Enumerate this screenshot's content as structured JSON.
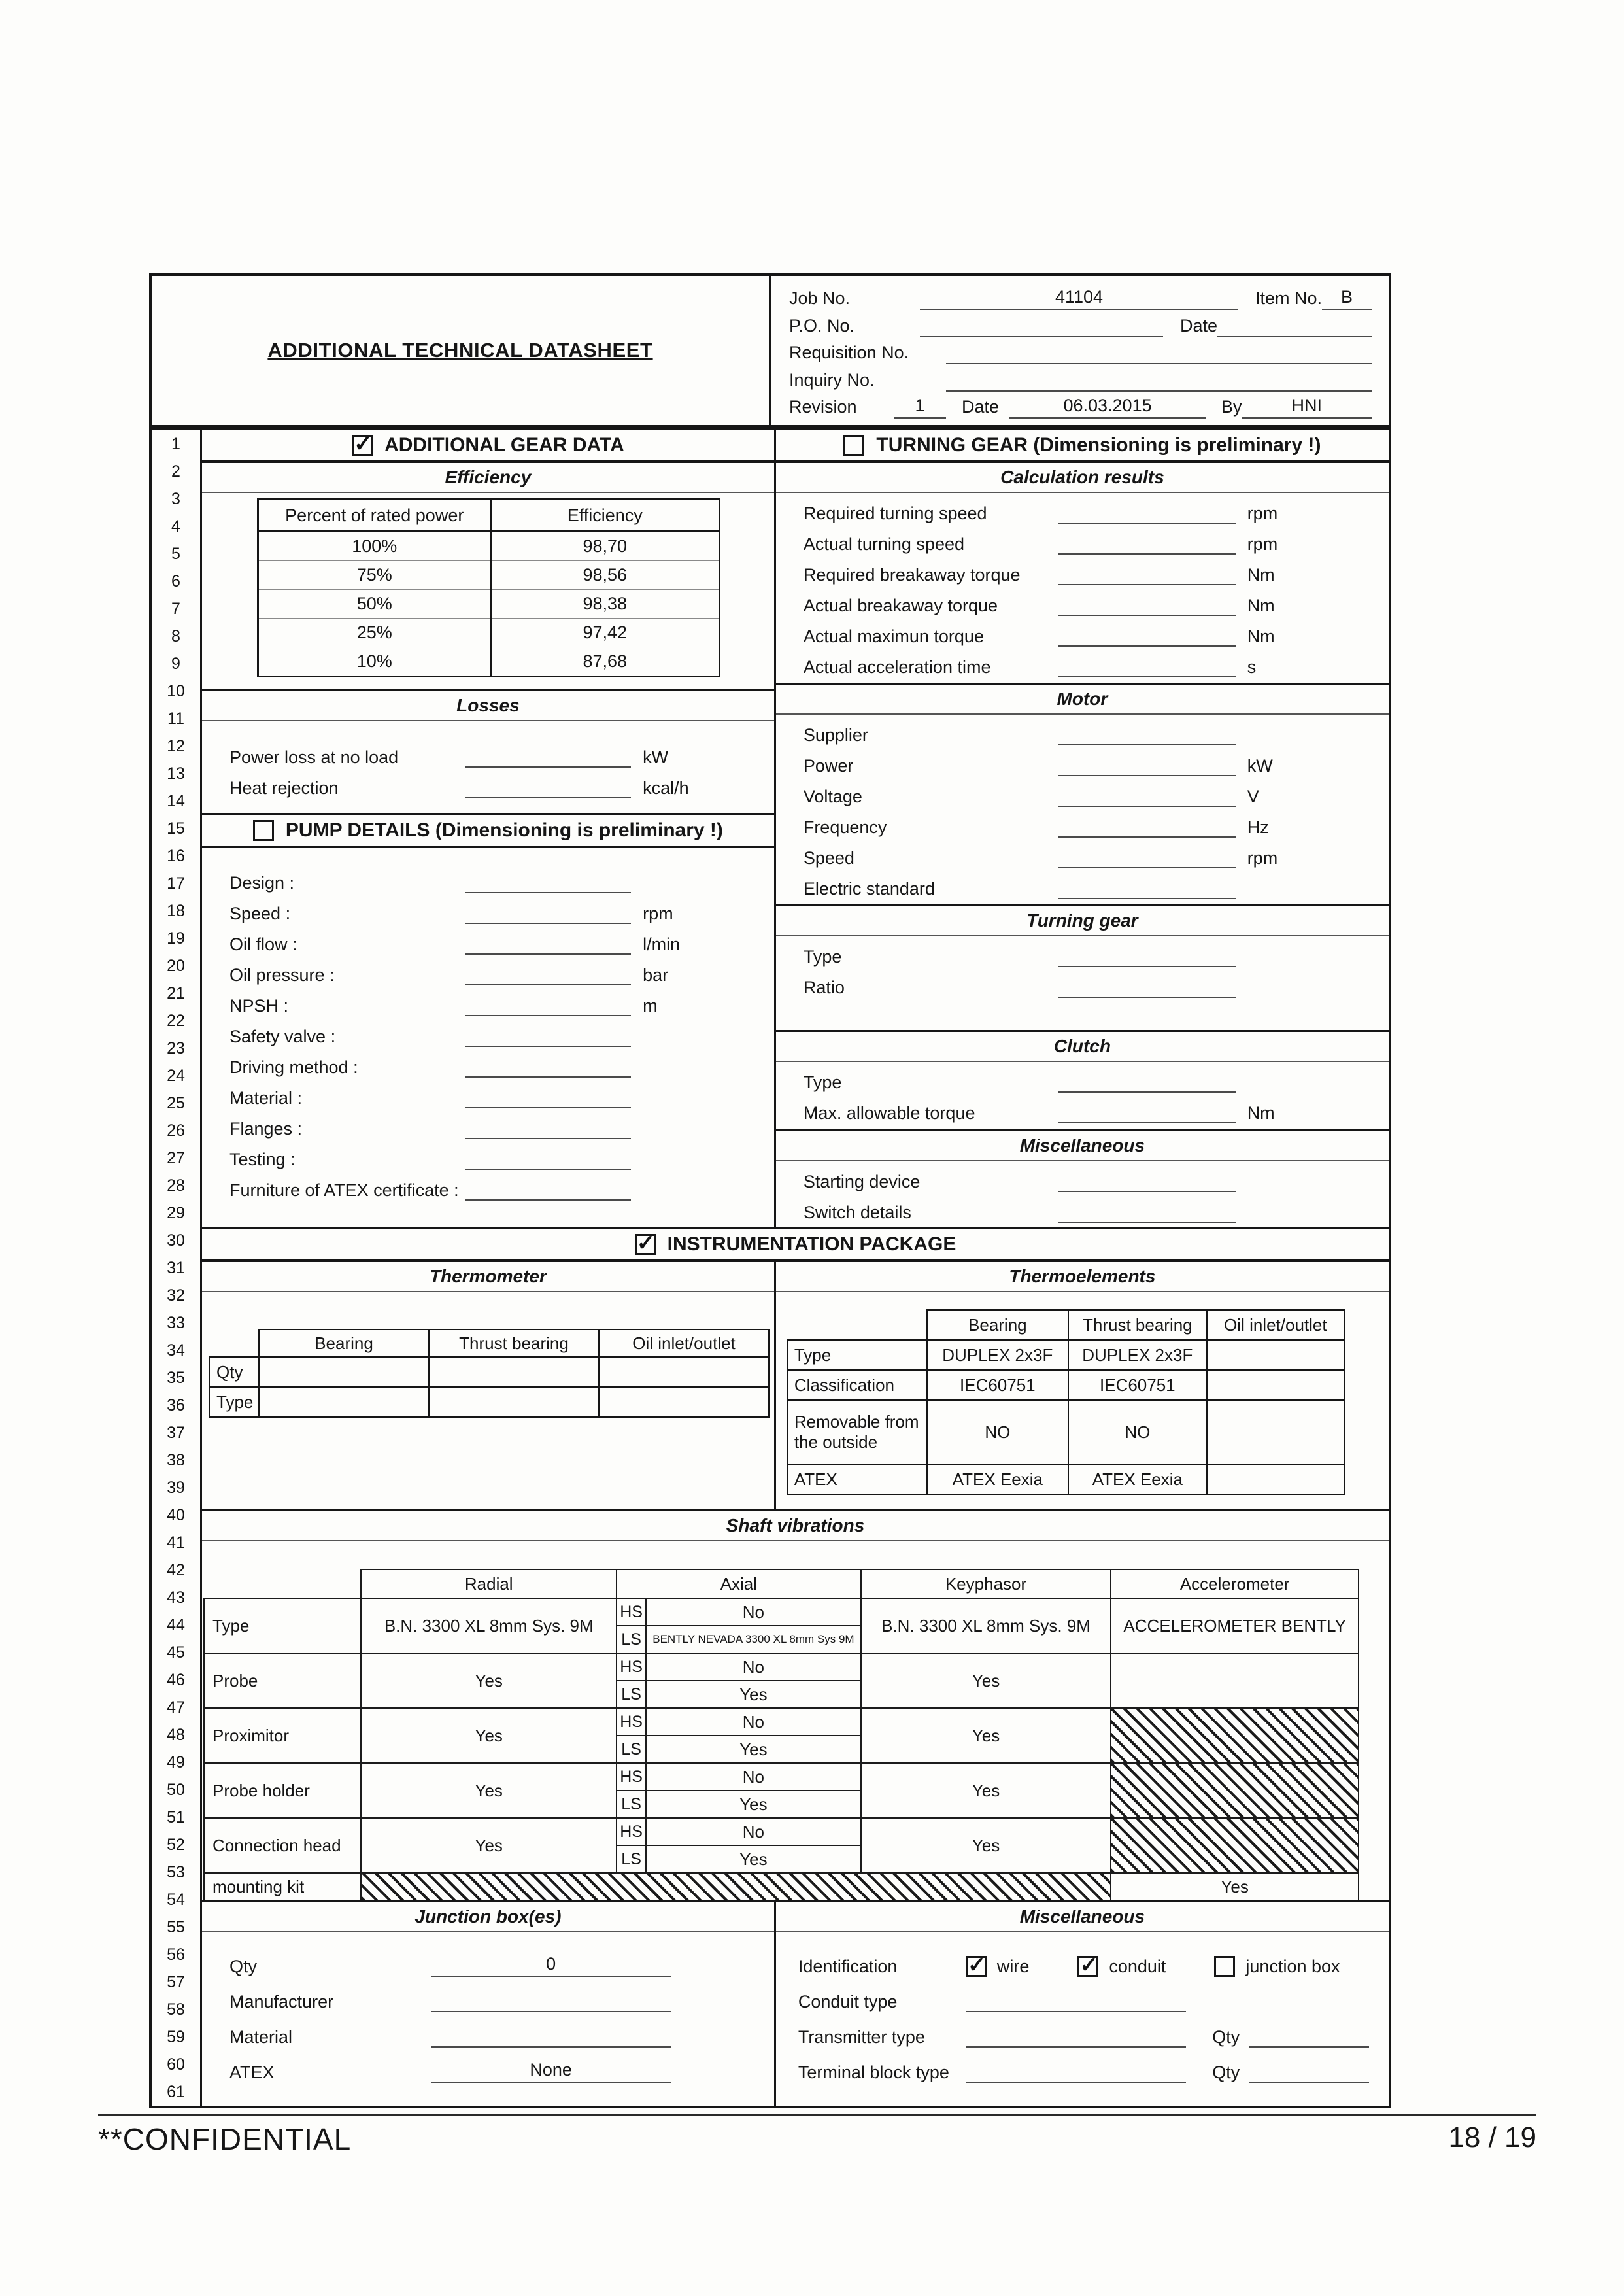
{
  "layout": {
    "row_count": 61
  },
  "header": {
    "title": "ADDITIONAL TECHNICAL DATASHEET",
    "job_no_label": "Job No.",
    "job_no_value": "41104",
    "item_no_label": "Item No.",
    "item_no_value": "B",
    "po_no_label": "P.O. No.",
    "date_label": "Date",
    "date_value": "",
    "requisition_label": "Requisition No.",
    "inquiry_label": "Inquiry No.",
    "revision_label": "Revision",
    "revision_value": "1",
    "rev_date_label": "Date",
    "rev_date_value": "06.03.2015",
    "by_label": "By",
    "by_value": "HNI"
  },
  "additional_gear": {
    "header": "ADDITIONAL GEAR DATA",
    "checked": true,
    "efficiency": {
      "title": "Efficiency",
      "table": {
        "col1": "Percent of rated power",
        "col2": "Efficiency",
        "rows": [
          [
            "100%",
            "98,70"
          ],
          [
            "75%",
            "98,56"
          ],
          [
            "50%",
            "98,38"
          ],
          [
            "25%",
            "97,42"
          ],
          [
            "10%",
            "87,68"
          ]
        ]
      }
    },
    "losses": {
      "title": "Losses",
      "fields": [
        {
          "label": "Power loss at no load",
          "unit": "kW"
        },
        {
          "label": "Heat rejection",
          "unit": "kcal/h"
        }
      ]
    }
  },
  "pump_details": {
    "header": "PUMP DETAILS (Dimensioning is preliminary !)",
    "checked": false,
    "fields": [
      {
        "label": "Design :",
        "unit": ""
      },
      {
        "label": "Speed :",
        "unit": "rpm"
      },
      {
        "label": "Oil flow :",
        "unit": "l/min"
      },
      {
        "label": "Oil pressure :",
        "unit": "bar"
      },
      {
        "label": "NPSH :",
        "unit": "m"
      },
      {
        "label": "Safety valve :",
        "unit": ""
      },
      {
        "label": "Driving method :",
        "unit": ""
      },
      {
        "label": "Material :",
        "unit": ""
      },
      {
        "label": "Flanges :",
        "unit": ""
      },
      {
        "label": "Testing :",
        "unit": ""
      },
      {
        "label": "Furniture of ATEX certificate :",
        "unit": ""
      }
    ]
  },
  "turning_gear_section": {
    "header": "TURNING GEAR (Dimensioning is preliminary !)",
    "checked": false,
    "calculation_results": {
      "title": "Calculation results",
      "fields": [
        {
          "label": "Required turning speed",
          "unit": "rpm"
        },
        {
          "label": "Actual turning speed",
          "unit": "rpm"
        },
        {
          "label": "Required breakaway torque",
          "unit": "Nm"
        },
        {
          "label": "Actual breakaway torque",
          "unit": "Nm"
        },
        {
          "label": "Actual maximun torque",
          "unit": "Nm"
        },
        {
          "label": "Actual acceleration time",
          "unit": "s"
        }
      ]
    },
    "motor": {
      "title": "Motor",
      "fields": [
        {
          "label": "Supplier",
          "unit": ""
        },
        {
          "label": "Power",
          "unit": "kW"
        },
        {
          "label": "Voltage",
          "unit": "V"
        },
        {
          "label": "Frequency",
          "unit": "Hz"
        },
        {
          "label": "Speed",
          "unit": "rpm"
        },
        {
          "label": "Electric standard",
          "unit": ""
        }
      ]
    },
    "turning_gear": {
      "title": "Turning gear",
      "fields": [
        {
          "label": "Type",
          "unit": ""
        },
        {
          "label": "Ratio",
          "unit": ""
        }
      ]
    },
    "clutch": {
      "title": "Clutch",
      "fields": [
        {
          "label": "Type",
          "unit": ""
        },
        {
          "label": "Max. allowable torque",
          "unit": "Nm"
        }
      ]
    },
    "miscellaneous": {
      "title": "Miscellaneous",
      "fields": [
        {
          "label": "Starting device",
          "unit": ""
        },
        {
          "label": "Switch details",
          "unit": ""
        }
      ]
    }
  },
  "instrumentation": {
    "header": "INSTRUMENTATION PACKAGE",
    "checked": true,
    "thermometer": {
      "title": "Thermometer",
      "columns": [
        "Bearing",
        "Thrust bearing",
        "Oil inlet/outlet"
      ],
      "rows": [
        {
          "label": "Qty",
          "values": [
            "",
            "",
            ""
          ]
        },
        {
          "label": "Type",
          "values": [
            "",
            "",
            ""
          ]
        }
      ]
    },
    "thermoelements": {
      "title": "Thermoelements",
      "columns": [
        "Bearing",
        "Thrust bearing",
        "Oil inlet/outlet"
      ],
      "rows": [
        {
          "label": "Type",
          "values": [
            "DUPLEX 2x3F",
            "DUPLEX 2x3F",
            ""
          ]
        },
        {
          "label": "Classification",
          "values": [
            "IEC60751",
            "IEC60751",
            ""
          ]
        },
        {
          "label": "Removable from the outside",
          "values": [
            "NO",
            "NO",
            ""
          ]
        },
        {
          "label": "ATEX",
          "values": [
            "ATEX Eexia",
            "ATEX Eexia",
            ""
          ]
        }
      ]
    },
    "shaft_vibrations": {
      "title": "Shaft vibrations",
      "columns": [
        "Radial",
        "Axial",
        "Keyphasor",
        "Accelerometer"
      ],
      "hs_label": "HS",
      "ls_label": "LS",
      "rows": [
        {
          "label": "Type",
          "radial": "B.N. 3300 XL 8mm Sys. 9M",
          "hs": "No",
          "ls": "BENTLY NEVADA 3300 XL 8mm Sys 9M",
          "ls_small": true,
          "keyphasor": "B.N. 3300 XL 8mm Sys. 9M",
          "accel": "ACCELEROMETER BENTLY",
          "accel_hatch": false
        },
        {
          "label": "Probe",
          "radial": "Yes",
          "hs": "No",
          "ls": "Yes",
          "ls_small": false,
          "keyphasor": "Yes",
          "accel": "",
          "accel_hatch": false
        },
        {
          "label": "Proximitor",
          "radial": "Yes",
          "hs": "No",
          "ls": "Yes",
          "ls_small": false,
          "keyphasor": "Yes",
          "accel": "",
          "accel_hatch": true
        },
        {
          "label": "Probe holder",
          "radial": "Yes",
          "hs": "No",
          "ls": "Yes",
          "ls_small": false,
          "keyphasor": "Yes",
          "accel": "",
          "accel_hatch": true
        },
        {
          "label": "Connection head",
          "radial": "Yes",
          "hs": "No",
          "ls": "Yes",
          "ls_small": false,
          "keyphasor": "Yes",
          "accel": "",
          "accel_hatch": true
        }
      ],
      "mounting_row": {
        "label": "mounting kit",
        "accel": "Yes"
      }
    },
    "junction_boxes": {
      "title": "Junction box(es)",
      "fields": [
        {
          "label": "Qty",
          "value": "0"
        },
        {
          "label": "Manufacturer",
          "value": ""
        },
        {
          "label": "Material",
          "value": ""
        },
        {
          "label": "ATEX",
          "value": "None"
        }
      ]
    },
    "misc2": {
      "title": "Miscellaneous",
      "identification_label": "Identification",
      "checkboxes": [
        {
          "label": "wire",
          "checked": true
        },
        {
          "label": "conduit",
          "checked": true
        },
        {
          "label": "junction box",
          "checked": false
        }
      ],
      "conduit_type_label": "Conduit type",
      "transmitter_label": "Transmitter type",
      "qty_label": "Qty",
      "terminal_label": "Terminal block type",
      "qty2_label": "Qty"
    }
  },
  "footer": {
    "left": "**CONFIDENTIAL",
    "right": "18 / 19"
  }
}
